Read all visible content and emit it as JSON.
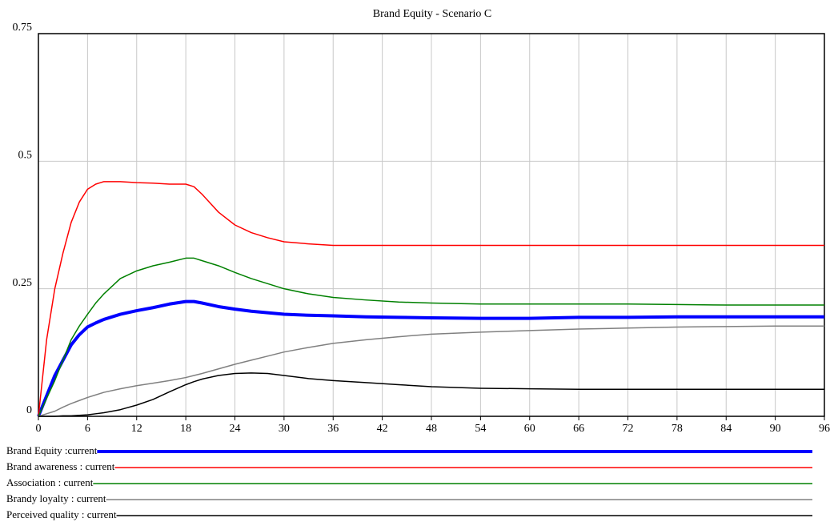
{
  "chart_data": {
    "type": "line",
    "title": "Brand Equity - Scenario C",
    "x": [
      0,
      1,
      2,
      3,
      4,
      5,
      6,
      7,
      8,
      10,
      12,
      14,
      16,
      18,
      19,
      20,
      22,
      24,
      26,
      28,
      30,
      33,
      36,
      40,
      44,
      48,
      54,
      60,
      66,
      72,
      78,
      84,
      90,
      96
    ],
    "xlim": [
      0,
      96
    ],
    "xticks": [
      0,
      6,
      12,
      18,
      24,
      30,
      36,
      42,
      48,
      54,
      60,
      66,
      72,
      78,
      84,
      90,
      96
    ],
    "ylim": [
      0,
      0.75
    ],
    "yticks": [
      0,
      0.25,
      0.5,
      0.75
    ],
    "grid": true,
    "series": [
      {
        "name": "Brand Equity :current",
        "color": "#0000ff",
        "line_width": 4,
        "values": [
          0,
          0.04,
          0.08,
          0.11,
          0.14,
          0.16,
          0.175,
          0.183,
          0.19,
          0.2,
          0.207,
          0.213,
          0.22,
          0.225,
          0.225,
          0.222,
          0.215,
          0.21,
          0.206,
          0.203,
          0.2,
          0.198,
          0.197,
          0.195,
          0.194,
          0.193,
          0.192,
          0.192,
          0.194,
          0.194,
          0.195,
          0.195,
          0.195,
          0.195
        ]
      },
      {
        "name": "Brand awareness : current",
        "color": "#ff0000",
        "line_width": 1.5,
        "values": [
          0,
          0.15,
          0.25,
          0.32,
          0.38,
          0.42,
          0.445,
          0.455,
          0.46,
          0.46,
          0.458,
          0.457,
          0.455,
          0.455,
          0.45,
          0.435,
          0.4,
          0.375,
          0.36,
          0.35,
          0.342,
          0.338,
          0.335,
          0.335,
          0.335,
          0.335,
          0.335,
          0.335,
          0.335,
          0.335,
          0.335,
          0.335,
          0.335,
          0.335
        ]
      },
      {
        "name": "Association : current",
        "color": "#008000",
        "line_width": 1.5,
        "values": [
          0,
          0.035,
          0.07,
          0.11,
          0.15,
          0.177,
          0.2,
          0.222,
          0.24,
          0.27,
          0.285,
          0.295,
          0.302,
          0.31,
          0.31,
          0.305,
          0.295,
          0.282,
          0.27,
          0.26,
          0.25,
          0.24,
          0.233,
          0.228,
          0.224,
          0.222,
          0.22,
          0.22,
          0.22,
          0.22,
          0.219,
          0.218,
          0.218,
          0.218
        ]
      },
      {
        "name": "Brandy loyalty : current",
        "color": "#808080",
        "line_width": 1.5,
        "values": [
          0,
          0.005,
          0.01,
          0.018,
          0.025,
          0.031,
          0.037,
          0.042,
          0.047,
          0.054,
          0.06,
          0.065,
          0.07,
          0.076,
          0.08,
          0.084,
          0.093,
          0.102,
          0.11,
          0.118,
          0.126,
          0.135,
          0.143,
          0.15,
          0.156,
          0.161,
          0.165,
          0.168,
          0.171,
          0.173,
          0.175,
          0.176,
          0.177,
          0.177
        ]
      },
      {
        "name": "Perceived quality : current",
        "color": "#000000",
        "line_width": 1.5,
        "values": [
          0,
          0,
          0,
          0.001,
          0.001,
          0.002,
          0.003,
          0.005,
          0.007,
          0.013,
          0.022,
          0.033,
          0.048,
          0.062,
          0.068,
          0.073,
          0.08,
          0.084,
          0.085,
          0.084,
          0.08,
          0.074,
          0.07,
          0.066,
          0.062,
          0.058,
          0.055,
          0.054,
          0.053,
          0.053,
          0.053,
          0.053,
          0.053,
          0.053
        ]
      }
    ]
  }
}
